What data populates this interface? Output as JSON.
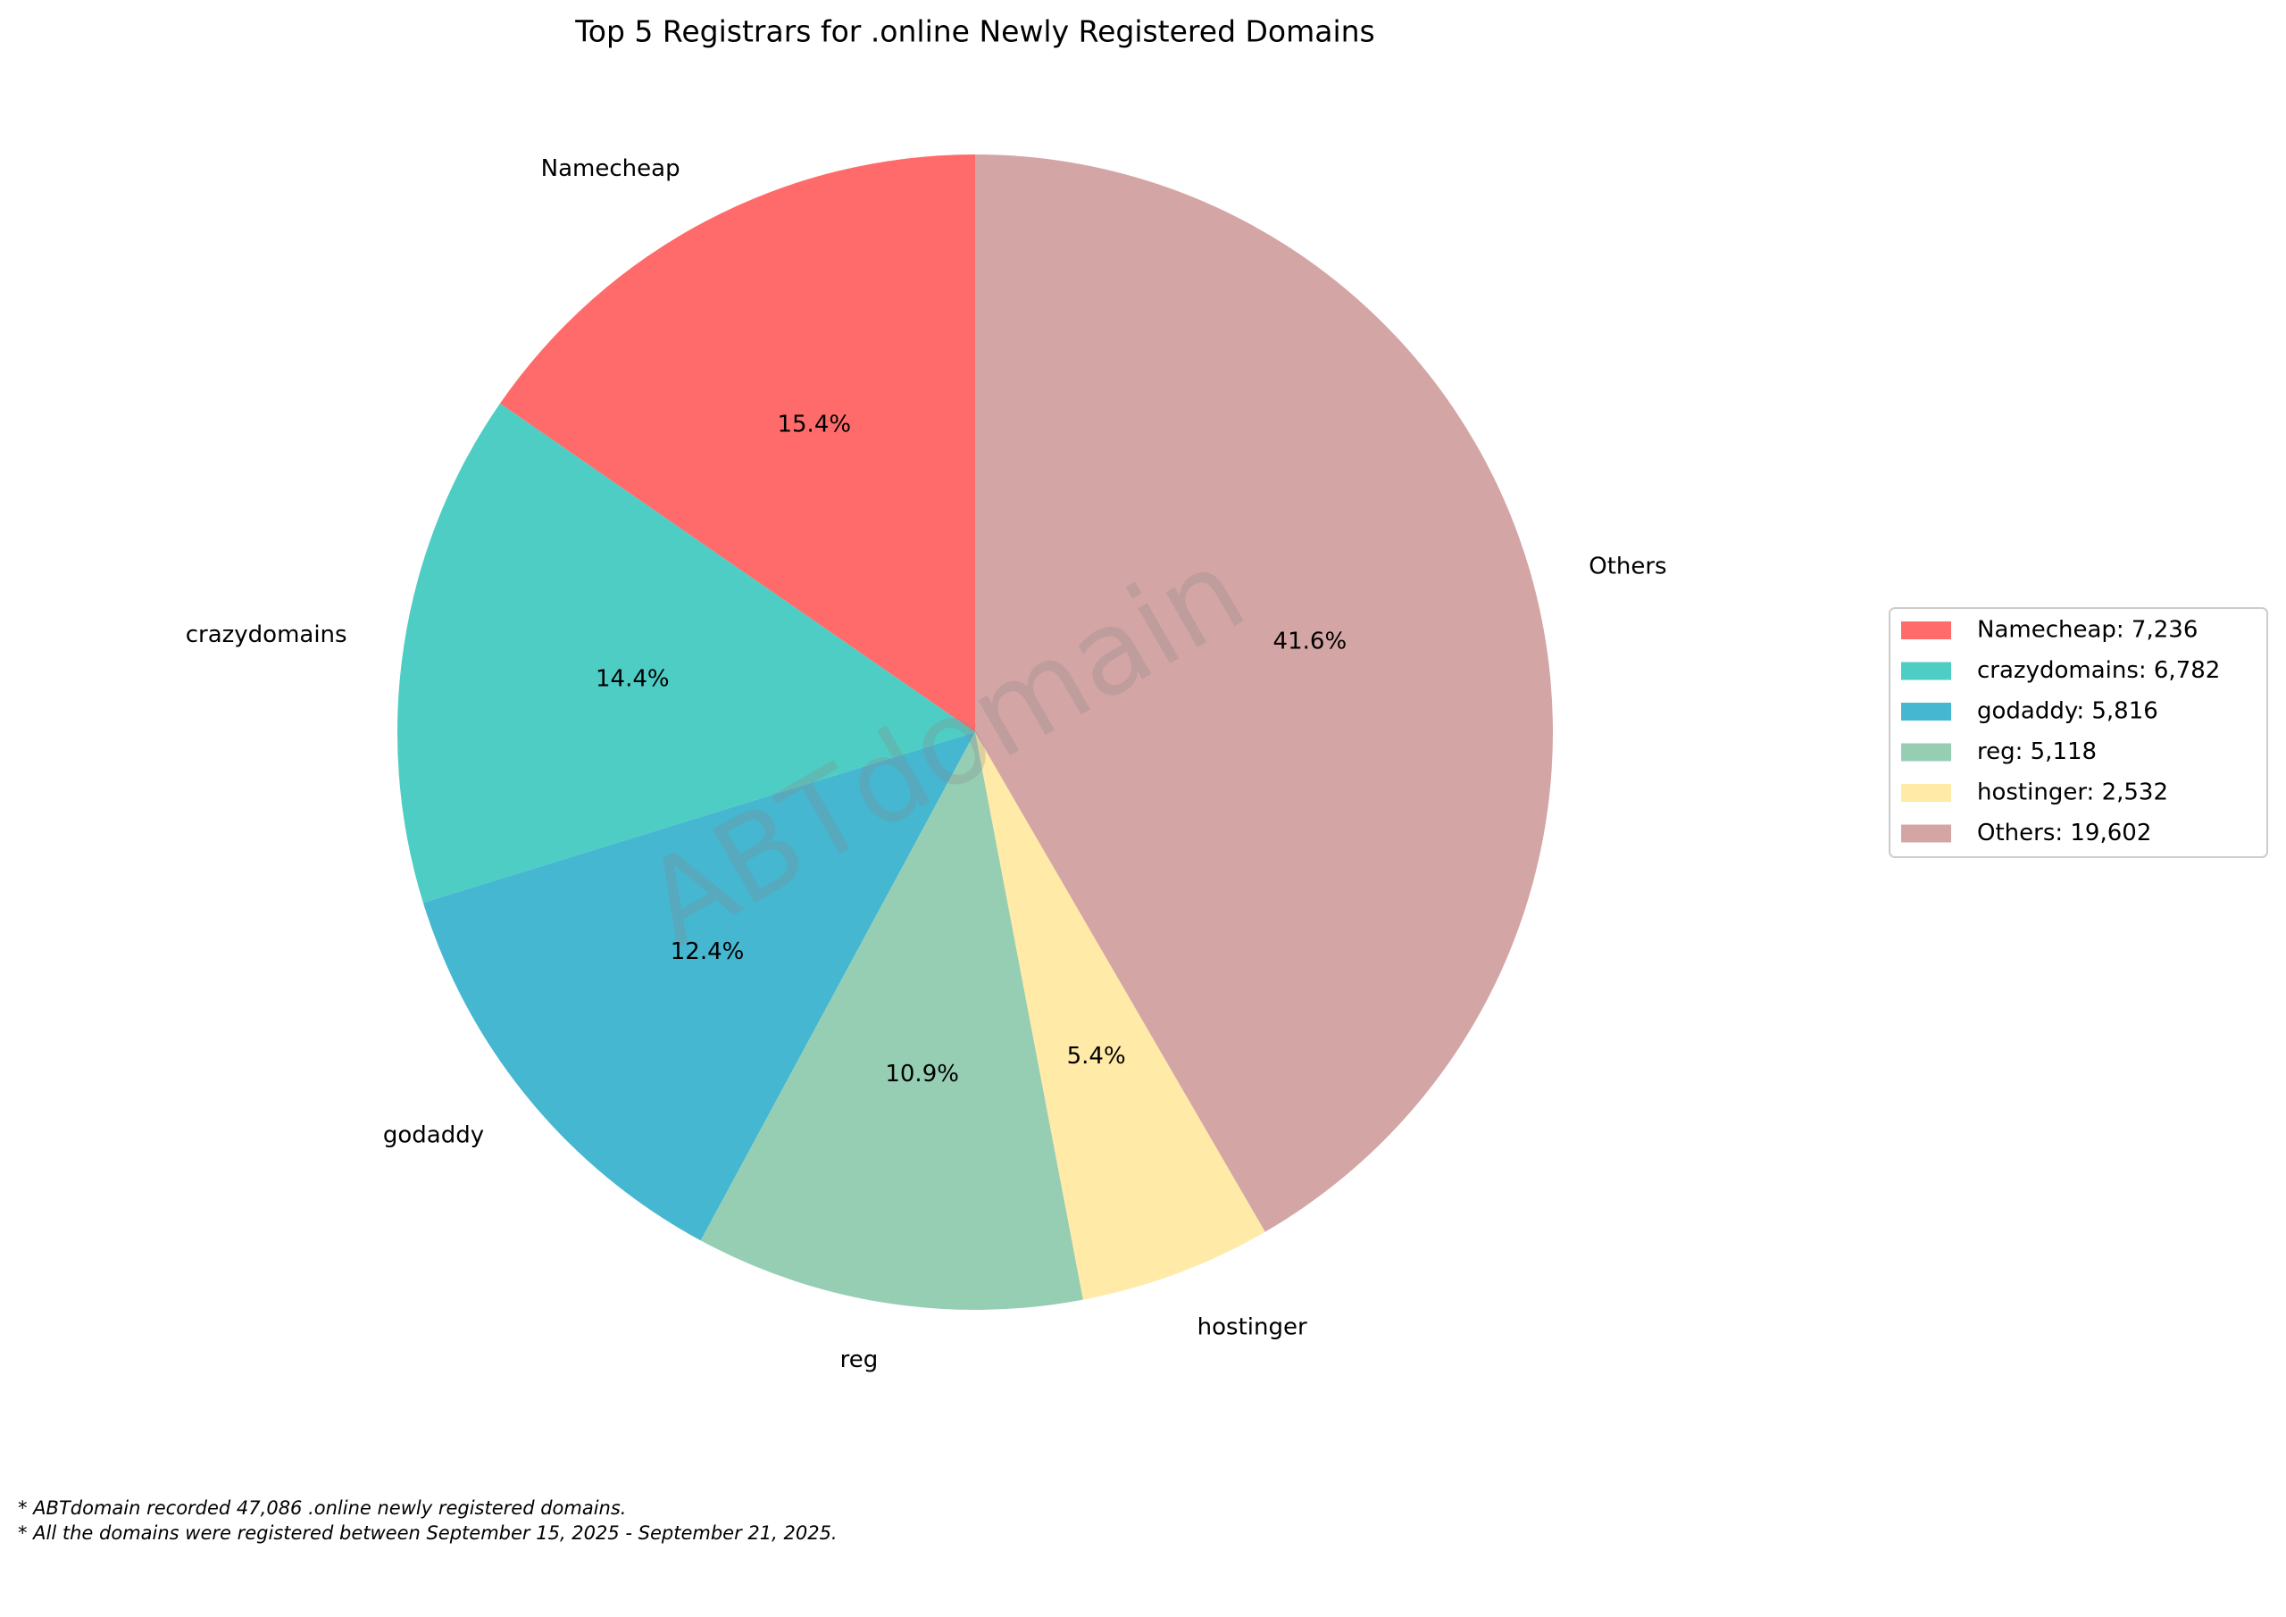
{
  "chart_data": {
    "type": "pie",
    "title": "Top 5 Registrars for .online Newly Registered Domains",
    "categories": [
      "Namecheap",
      "crazydomains",
      "godaddy",
      "reg",
      "hostinger",
      "Others"
    ],
    "values": [
      7236,
      6782,
      5816,
      5118,
      2532,
      19602
    ],
    "value_labels": [
      "15.4%",
      "14.4%",
      "12.4%",
      "10.9%",
      "5.4%",
      "41.6%"
    ],
    "colors": [
      "#ff6b6b",
      "#4ecdc4",
      "#45b7d1",
      "#96ceb4",
      "#ffeaa7",
      "#d4a5a5"
    ],
    "legend_labels": [
      "Namecheap: 7,236",
      "crazydomains: 6,782",
      "godaddy: 5,816",
      "reg: 5,118",
      "hostinger: 2,532",
      "Others: 19,602"
    ],
    "legend_position": "right",
    "start_angle": 90,
    "watermark": "ABTdomain",
    "footnotes": [
      "* ABTdomain recorded 47,086 .online newly registered domains.",
      "* All the domains were registered between September 15, 2025 - September 21, 2025."
    ]
  }
}
